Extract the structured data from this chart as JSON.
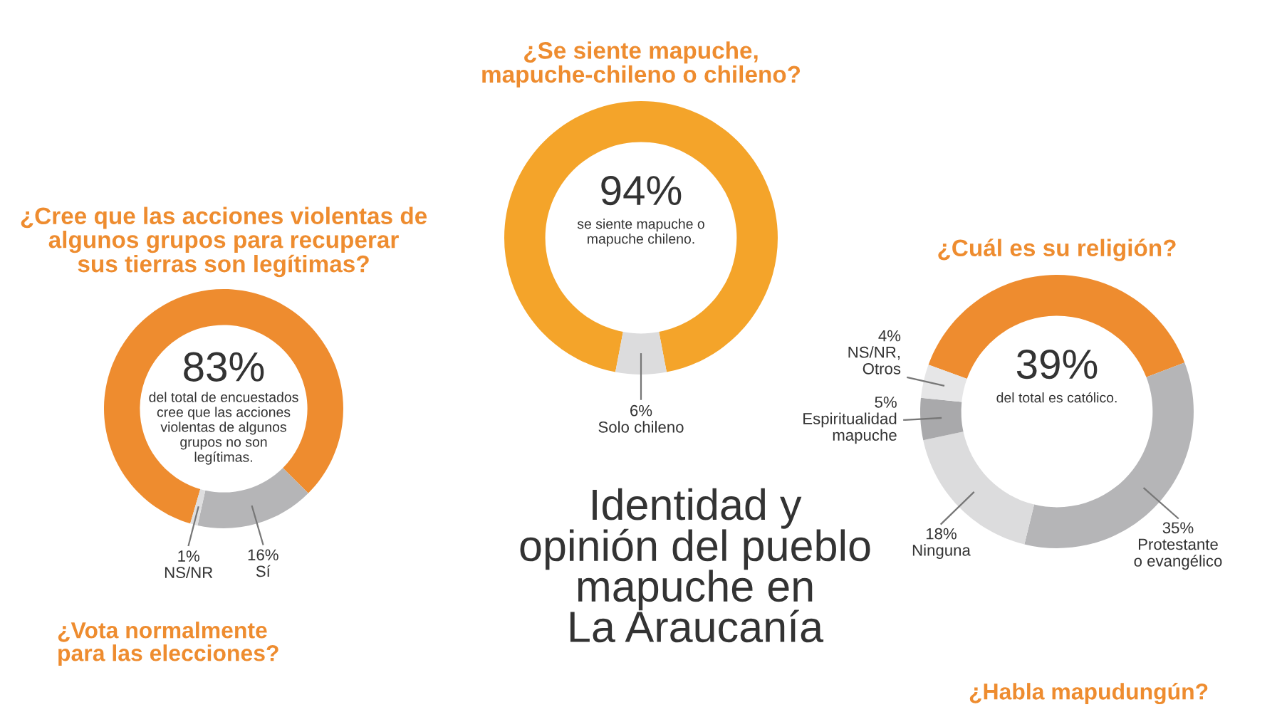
{
  "chart_data": [
    {
      "type": "donut",
      "title": "¿Cree que las acciones violentas de\nalgunos grupos para recuperar\nsus tierras son legítimas?",
      "categories": [
        null,
        "Sí",
        "NS/NR"
      ],
      "values": [
        83,
        16,
        1
      ],
      "colors": [
        "#ee8c2f",
        "#b5b5b7",
        "#dededf"
      ],
      "value_labels": [
        "83%",
        "16%",
        "1%"
      ],
      "annotations": [
        "del total de encuestados\ncree que las acciones\nviolentas de algunos\ngrupos no son\nlegítimas."
      ]
    },
    {
      "type": "donut",
      "title": "¿Se siente mapuche,\nmapuche-chileno o chileno?",
      "categories": [
        null,
        "Solo chileno"
      ],
      "values": [
        94,
        6
      ],
      "colors": [
        "#f4a42a",
        "#dcdcdd"
      ],
      "value_labels": [
        "94%",
        "6%"
      ],
      "annotations": [
        "se siente mapuche o\nmapuche chileno."
      ]
    },
    {
      "type": "donut",
      "title": "¿Cuál es su religión?",
      "categories": [
        null,
        "Protestante\no evangélico",
        "Ninguna",
        "Espiritualidad\nmapuche",
        "NS/NR,\nOtros"
      ],
      "values": [
        39,
        35,
        18,
        5,
        4
      ],
      "colors": [
        "#ee8c2f",
        "#b5b5b7",
        "#dcdcdd",
        "#a9a9ab",
        "#e6e6e7"
      ],
      "value_labels": [
        "39%",
        "35%",
        "18%",
        "5%",
        "4%"
      ],
      "annotations": [
        "del total es católico."
      ]
    },
    {
      "type": "other",
      "title": "Identidad y\nopinión del pueblo\nmapuche en\nLa Araucanía",
      "annotations": [
        "¿Vota normalmente\npara las elecciones?",
        "¿Habla mapudungún?"
      ]
    }
  ]
}
